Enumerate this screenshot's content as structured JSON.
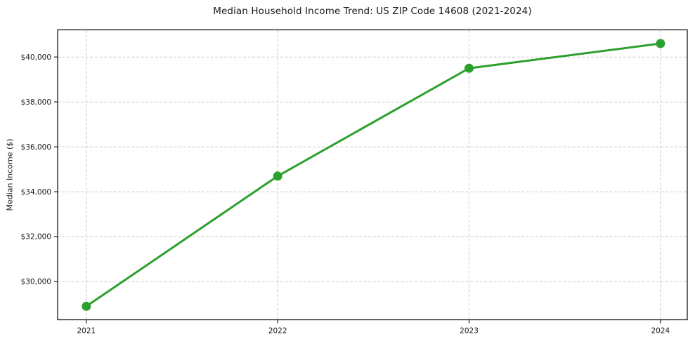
{
  "chart": {
    "title": "Median Household Income Trend: US ZIP Code 14608 (2021-2024)",
    "y_axis_label": "Median Income ($)"
  },
  "chart_data": {
    "type": "line",
    "title": "Median Household Income Trend: US ZIP Code 14608 (2021-2024)",
    "xlabel": "",
    "ylabel": "Median Income ($)",
    "x": [
      2021,
      2022,
      2023,
      2024
    ],
    "xtick_labels": [
      "2021",
      "2022",
      "2023",
      "2024"
    ],
    "series": [
      {
        "name": "Median Household Income",
        "values": [
          28900,
          34700,
          39500,
          40600
        ]
      }
    ],
    "yticks": [
      30000,
      32000,
      34000,
      36000,
      38000,
      40000
    ],
    "ytick_labels": [
      "$30,000",
      "$32,000",
      "$34,000",
      "$36,000",
      "$38,000",
      "$40,000"
    ],
    "xlim": [
      2020.85,
      2024.14
    ],
    "ylim": [
      28300,
      41210
    ],
    "grid": true,
    "grid_style": "dashed",
    "legend": "none",
    "colors": {
      "line": "#2ca02c",
      "marker": "#2ca02c",
      "grid": "#c9c9c9",
      "axis": "#1a1a1a",
      "text": "#1a1a1a",
      "background": "#ffffff"
    }
  }
}
